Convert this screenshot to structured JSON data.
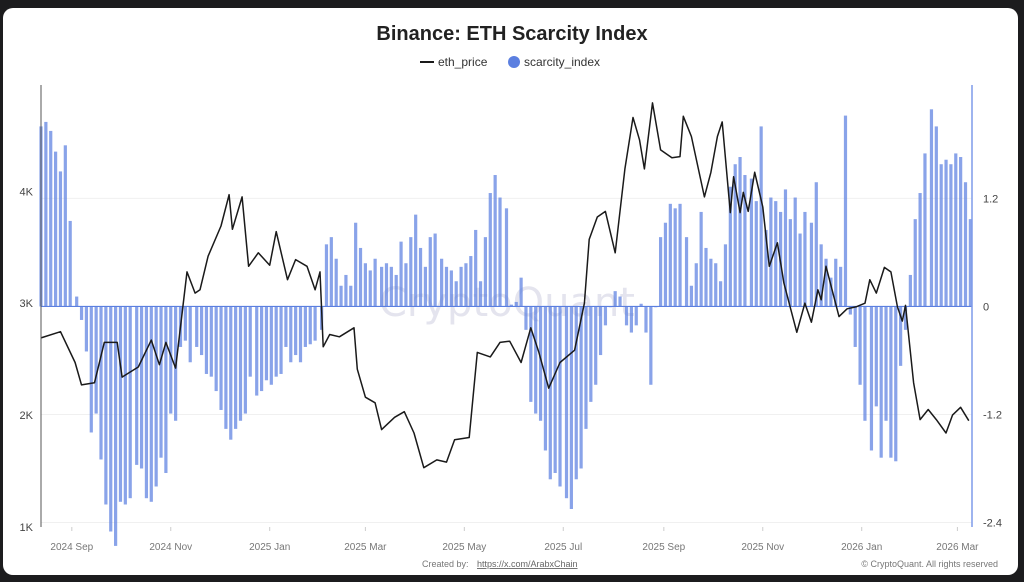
{
  "chart_data": {
    "type": "bar+line",
    "title": "Binance: ETH Scarcity Index",
    "legend": {
      "placement": "top-center",
      "items": [
        "eth_price",
        "scarcity_index"
      ]
    },
    "watermark": "CryptoQuant",
    "grid": true,
    "xlim": [
      "2024-08-13",
      "2026-03-10"
    ],
    "x_ticks": [
      "2024 Sep",
      "2024 Nov",
      "2025 Jan",
      "2025 Mar",
      "2025 May",
      "2025 Jul",
      "2025 Sep",
      "2025 Nov",
      "2026 Jan",
      "2026 Mar"
    ],
    "x_tick_dates": [
      "2024-09-01",
      "2024-11-01",
      "2025-01-01",
      "2025-03-01",
      "2025-05-01",
      "2025-07-01",
      "2025-09-01",
      "2025-11-01",
      "2026-01-01",
      "2026-03-01"
    ],
    "y_left": {
      "ylim": [
        1000,
        4950
      ],
      "ticks": [
        1000,
        2000,
        3000,
        4000
      ],
      "tick_labels": [
        "1K",
        "2K",
        "3K",
        "4K"
      ]
    },
    "y_right": {
      "ylim": [
        -2.45,
        2.46
      ],
      "ticks": [
        -2.4,
        -1.2,
        0,
        1.2
      ],
      "tick_labels": [
        "-2.4",
        "-1.2",
        "0",
        "1.2"
      ]
    },
    "colors": {
      "eth_price": "#1a1a1a",
      "scarcity_index": "#5b7fe0"
    },
    "series": [
      {
        "name": "eth_price",
        "type": "line",
        "axis": "left",
        "points": [
          [
            "2024-08-13",
            2690
          ],
          [
            "2024-08-25",
            2745
          ],
          [
            "2024-09-03",
            2470
          ],
          [
            "2024-09-07",
            2270
          ],
          [
            "2024-09-15",
            2290
          ],
          [
            "2024-09-21",
            2650
          ],
          [
            "2024-09-29",
            2650
          ],
          [
            "2024-10-02",
            2340
          ],
          [
            "2024-10-12",
            2430
          ],
          [
            "2024-10-20",
            2670
          ],
          [
            "2024-10-25",
            2450
          ],
          [
            "2024-10-29",
            2650
          ],
          [
            "2024-11-04",
            2420
          ],
          [
            "2024-11-11",
            3280
          ],
          [
            "2024-11-16",
            3090
          ],
          [
            "2024-11-19",
            3120
          ],
          [
            "2024-11-24",
            3420
          ],
          [
            "2024-12-02",
            3690
          ],
          [
            "2024-12-07",
            3970
          ],
          [
            "2024-12-09",
            3660
          ],
          [
            "2024-12-15",
            3950
          ],
          [
            "2024-12-19",
            3330
          ],
          [
            "2024-12-25",
            3450
          ],
          [
            "2025-01-01",
            3340
          ],
          [
            "2025-01-05",
            3640
          ],
          [
            "2025-01-12",
            3210
          ],
          [
            "2025-01-17",
            3390
          ],
          [
            "2025-01-24",
            3330
          ],
          [
            "2025-01-29",
            3120
          ],
          [
            "2025-02-01",
            3280
          ],
          [
            "2025-02-03",
            2610
          ],
          [
            "2025-02-07",
            2720
          ],
          [
            "2025-02-13",
            2700
          ],
          [
            "2025-02-22",
            2780
          ],
          [
            "2025-02-24",
            2410
          ],
          [
            "2025-03-01",
            2160
          ],
          [
            "2025-03-07",
            2110
          ],
          [
            "2025-03-11",
            1870
          ],
          [
            "2025-03-19",
            1980
          ],
          [
            "2025-03-25",
            2030
          ],
          [
            "2025-03-31",
            1840
          ],
          [
            "2025-04-06",
            1530
          ],
          [
            "2025-04-14",
            1600
          ],
          [
            "2025-04-20",
            1580
          ],
          [
            "2025-04-25",
            1780
          ],
          [
            "2025-05-04",
            1800
          ],
          [
            "2025-05-09",
            2560
          ],
          [
            "2025-05-17",
            2520
          ],
          [
            "2025-05-23",
            2650
          ],
          [
            "2025-05-29",
            2660
          ],
          [
            "2025-06-05",
            2470
          ],
          [
            "2025-06-11",
            2780
          ],
          [
            "2025-06-16",
            2560
          ],
          [
            "2025-06-22",
            2240
          ],
          [
            "2025-06-29",
            2470
          ],
          [
            "2025-07-08",
            2580
          ],
          [
            "2025-07-14",
            3000
          ],
          [
            "2025-07-17",
            3570
          ],
          [
            "2025-07-22",
            3770
          ],
          [
            "2025-07-27",
            3820
          ],
          [
            "2025-08-02",
            3450
          ],
          [
            "2025-08-08",
            4200
          ],
          [
            "2025-08-13",
            4660
          ],
          [
            "2025-08-17",
            4460
          ],
          [
            "2025-08-20",
            4200
          ],
          [
            "2025-08-25",
            4790
          ],
          [
            "2025-08-30",
            4370
          ],
          [
            "2025-09-06",
            4300
          ],
          [
            "2025-09-11",
            4310
          ],
          [
            "2025-09-13",
            4670
          ],
          [
            "2025-09-18",
            4490
          ],
          [
            "2025-09-26",
            3950
          ],
          [
            "2025-09-30",
            4170
          ],
          [
            "2025-10-04",
            4490
          ],
          [
            "2025-10-07",
            4620
          ],
          [
            "2025-10-12",
            3810
          ],
          [
            "2025-10-14",
            4130
          ],
          [
            "2025-10-18",
            3810
          ],
          [
            "2025-10-20",
            3990
          ],
          [
            "2025-10-23",
            3820
          ],
          [
            "2025-10-27",
            4170
          ],
          [
            "2025-11-01",
            3860
          ],
          [
            "2025-11-05",
            3330
          ],
          [
            "2025-11-10",
            3540
          ],
          [
            "2025-11-14",
            3180
          ],
          [
            "2025-11-22",
            2740
          ],
          [
            "2025-11-27",
            3000
          ],
          [
            "2025-12-01",
            2830
          ],
          [
            "2025-12-05",
            3120
          ],
          [
            "2025-12-07",
            3030
          ],
          [
            "2025-12-10",
            3330
          ],
          [
            "2025-12-18",
            2880
          ],
          [
            "2025-12-23",
            2950
          ],
          [
            "2025-12-29",
            2970
          ],
          [
            "2026-01-03",
            3000
          ],
          [
            "2026-01-06",
            3210
          ],
          [
            "2026-01-10",
            3090
          ],
          [
            "2026-01-15",
            3320
          ],
          [
            "2026-01-19",
            3280
          ],
          [
            "2026-01-23",
            2970
          ],
          [
            "2026-01-26",
            2840
          ],
          [
            "2026-01-28",
            2980
          ],
          [
            "2026-02-02",
            2290
          ],
          [
            "2026-02-06",
            1960
          ],
          [
            "2026-02-11",
            2050
          ],
          [
            "2026-02-16",
            1960
          ],
          [
            "2026-02-22",
            1840
          ],
          [
            "2026-02-26",
            2000
          ],
          [
            "2026-03-03",
            2070
          ],
          [
            "2026-03-08",
            1950
          ]
        ]
      },
      {
        "name": "scarcity_index",
        "type": "bar",
        "axis": "right",
        "dates": [
          "2024-08-13",
          "2024-08-16",
          "2024-08-19",
          "2024-08-22",
          "2024-08-25",
          "2024-08-28",
          "2024-08-31",
          "2024-09-04",
          "2024-09-07",
          "2024-09-10",
          "2024-09-13",
          "2024-09-16",
          "2024-09-19",
          "2024-09-22",
          "2024-09-25",
          "2024-09-28",
          "2024-10-01",
          "2024-10-04",
          "2024-10-07",
          "2024-10-11",
          "2024-10-14",
          "2024-10-17",
          "2024-10-20",
          "2024-10-23",
          "2024-10-26",
          "2024-10-29",
          "2024-11-01",
          "2024-11-04",
          "2024-11-07",
          "2024-11-10",
          "2024-11-13",
          "2024-11-17",
          "2024-11-20",
          "2024-11-23",
          "2024-11-26",
          "2024-11-29",
          "2024-12-02",
          "2024-12-05",
          "2024-12-08",
          "2024-12-11",
          "2024-12-14",
          "2024-12-17",
          "2024-12-20",
          "2024-12-24",
          "2024-12-27",
          "2024-12-30",
          "2025-01-02",
          "2025-01-05",
          "2025-01-08",
          "2025-01-11",
          "2025-01-14",
          "2025-01-17",
          "2025-01-20",
          "2025-01-23",
          "2025-01-26",
          "2025-01-29",
          "2025-02-02",
          "2025-02-05",
          "2025-02-08",
          "2025-02-11",
          "2025-02-14",
          "2025-02-17",
          "2025-02-20",
          "2025-02-23",
          "2025-02-26",
          "2025-03-01",
          "2025-03-04",
          "2025-03-07",
          "2025-03-11",
          "2025-03-14",
          "2025-03-17",
          "2025-03-20",
          "2025-03-23",
          "2025-03-26",
          "2025-03-29",
          "2025-04-01",
          "2025-04-04",
          "2025-04-07",
          "2025-04-10",
          "2025-04-13",
          "2025-04-17",
          "2025-04-20",
          "2025-04-23",
          "2025-04-26",
          "2025-04-29",
          "2025-05-02",
          "2025-05-05",
          "2025-05-08",
          "2025-05-11",
          "2025-05-14",
          "2025-05-17",
          "2025-05-20",
          "2025-05-23",
          "2025-05-27",
          "2025-05-30",
          "2025-06-02",
          "2025-06-05",
          "2025-06-08",
          "2025-06-11",
          "2025-06-14",
          "2025-06-17",
          "2025-06-20",
          "2025-06-23",
          "2025-06-26",
          "2025-06-29",
          "2025-07-03",
          "2025-07-06",
          "2025-07-09",
          "2025-07-12",
          "2025-07-15",
          "2025-07-18",
          "2025-07-21",
          "2025-07-24",
          "2025-07-27",
          "2025-07-30",
          "2025-08-02",
          "2025-08-05",
          "2025-08-09",
          "2025-08-12",
          "2025-08-15",
          "2025-08-18",
          "2025-08-21",
          "2025-08-24",
          "2025-08-27",
          "2025-08-30",
          "2025-09-02",
          "2025-09-05",
          "2025-09-08",
          "2025-09-11",
          "2025-09-15",
          "2025-09-18",
          "2025-09-21",
          "2025-09-24",
          "2025-09-27",
          "2025-09-30",
          "2025-10-03",
          "2025-10-06",
          "2025-10-09",
          "2025-10-12",
          "2025-10-15",
          "2025-10-18",
          "2025-10-21",
          "2025-10-25",
          "2025-10-28",
          "2025-10-31",
          "2025-11-03",
          "2025-11-06",
          "2025-11-09",
          "2025-11-12",
          "2025-11-15",
          "2025-11-18",
          "2025-11-21",
          "2025-11-24",
          "2025-11-27",
          "2025-12-01",
          "2025-12-04",
          "2025-12-07",
          "2025-12-10",
          "2025-12-13",
          "2025-12-16",
          "2025-12-19",
          "2025-12-22",
          "2025-12-25",
          "2025-12-28",
          "2025-12-31",
          "2026-01-03",
          "2026-01-07",
          "2026-01-10",
          "2026-01-13",
          "2026-01-16",
          "2026-01-19",
          "2026-01-22",
          "2026-01-25",
          "2026-01-28",
          "2026-01-31",
          "2026-02-03",
          "2026-02-06",
          "2026-02-09",
          "2026-02-13",
          "2026-02-16",
          "2026-02-19",
          "2026-02-22",
          "2026-02-25",
          "2026-02-28",
          "2026-03-03",
          "2026-03-06",
          "2026-03-09"
        ],
        "values": [
          2.0,
          2.05,
          1.95,
          1.72,
          1.5,
          1.79,
          0.95,
          0.11,
          -0.15,
          -0.5,
          -1.4,
          -1.19,
          -1.7,
          -2.2,
          -2.5,
          -2.66,
          -2.17,
          -2.2,
          -2.13,
          -1.76,
          -1.8,
          -2.13,
          -2.17,
          -2.0,
          -1.68,
          -1.85,
          -1.19,
          -1.27,
          -0.45,
          -0.38,
          -0.62,
          -0.45,
          -0.54,
          -0.75,
          -0.78,
          -0.94,
          -1.15,
          -1.36,
          -1.48,
          -1.36,
          -1.27,
          -1.19,
          -0.78,
          -0.99,
          -0.94,
          -0.82,
          -0.87,
          -0.78,
          -0.75,
          -0.45,
          -0.62,
          -0.54,
          -0.62,
          -0.45,
          -0.42,
          -0.38,
          -0.26,
          0.69,
          0.77,
          0.53,
          0.23,
          0.35,
          0.23,
          0.93,
          0.65,
          0.48,
          0.4,
          0.53,
          0.44,
          0.48,
          0.44,
          0.35,
          0.72,
          0.48,
          0.77,
          1.02,
          0.65,
          0.44,
          0.77,
          0.81,
          0.53,
          0.44,
          0.4,
          0.28,
          0.44,
          0.48,
          0.56,
          0.85,
          0.28,
          0.77,
          1.26,
          1.46,
          1.21,
          1.09,
          0.02,
          0.05,
          0.32,
          -0.26,
          -1.06,
          -1.19,
          -1.27,
          -1.6,
          -1.92,
          -1.85,
          -2.0,
          -2.13,
          -2.25,
          -1.92,
          -1.8,
          -1.36,
          -1.06,
          -0.87,
          -0.54,
          -0.21,
          0.0,
          0.17,
          0.11,
          -0.21,
          -0.29,
          -0.21,
          0.03,
          -0.29,
          -0.87,
          0.0,
          0.77,
          0.93,
          1.14,
          1.09,
          1.14,
          0.77,
          0.23,
          0.48,
          1.05,
          0.65,
          0.53,
          0.48,
          0.28,
          0.69,
          1.33,
          1.58,
          1.66,
          1.46,
          1.42,
          1.17,
          2.0,
          0.85,
          1.21,
          1.17,
          1.05,
          1.3,
          0.97,
          1.21,
          0.81,
          1.05,
          0.93,
          1.38,
          0.69,
          0.53,
          0.32,
          0.53,
          0.44,
          2.12,
          -0.09,
          -0.45,
          -0.87,
          -1.27,
          -1.6,
          -1.11,
          -1.68,
          -1.27,
          -1.68,
          -1.72,
          -0.66,
          -0.26,
          0.35,
          0.97,
          1.26,
          1.7,
          2.19,
          2.0,
          1.58,
          1.63,
          1.58,
          1.7,
          1.66,
          1.38,
          0.97
        ]
      }
    ]
  },
  "footer": {
    "created_by_label": "Created by:",
    "created_by_link": "https://x.com/ArabxChain",
    "copyright": "© CryptoQuant. All rights reserved"
  }
}
